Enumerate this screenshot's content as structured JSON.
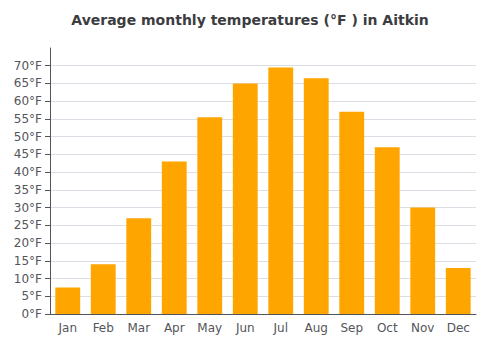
{
  "chart_data": {
    "type": "bar",
    "title": "Average monthly temperatures (°F ) in Aitkin",
    "categories": [
      "Jan",
      "Feb",
      "Mar",
      "Apr",
      "May",
      "Jun",
      "Jul",
      "Aug",
      "Sep",
      "Oct",
      "Nov",
      "Dec"
    ],
    "values": [
      7.5,
      14.0,
      27.0,
      43.0,
      55.5,
      65.0,
      69.5,
      66.5,
      57.0,
      47.0,
      30.0,
      13.0
    ],
    "color": "#FFA500",
    "ylim": [
      0,
      75
    ],
    "yticks": [
      {
        "value": 0,
        "label": "0°F"
      },
      {
        "value": 5,
        "label": "5°F"
      },
      {
        "value": 10,
        "label": "10°F"
      },
      {
        "value": 15,
        "label": "15°F"
      },
      {
        "value": 20,
        "label": "20°F"
      },
      {
        "value": 25,
        "label": "25°F"
      },
      {
        "value": 30,
        "label": "30°F"
      },
      {
        "value": 35,
        "label": "35°F"
      },
      {
        "value": 40,
        "label": "40°F"
      },
      {
        "value": 45,
        "label": "45°F"
      },
      {
        "value": 50,
        "label": "50°F"
      },
      {
        "value": 55,
        "label": "55°F"
      },
      {
        "value": 60,
        "label": "60°F"
      },
      {
        "value": 65,
        "label": "65°F"
      },
      {
        "value": 70,
        "label": "70°F"
      }
    ],
    "grid": true
  }
}
